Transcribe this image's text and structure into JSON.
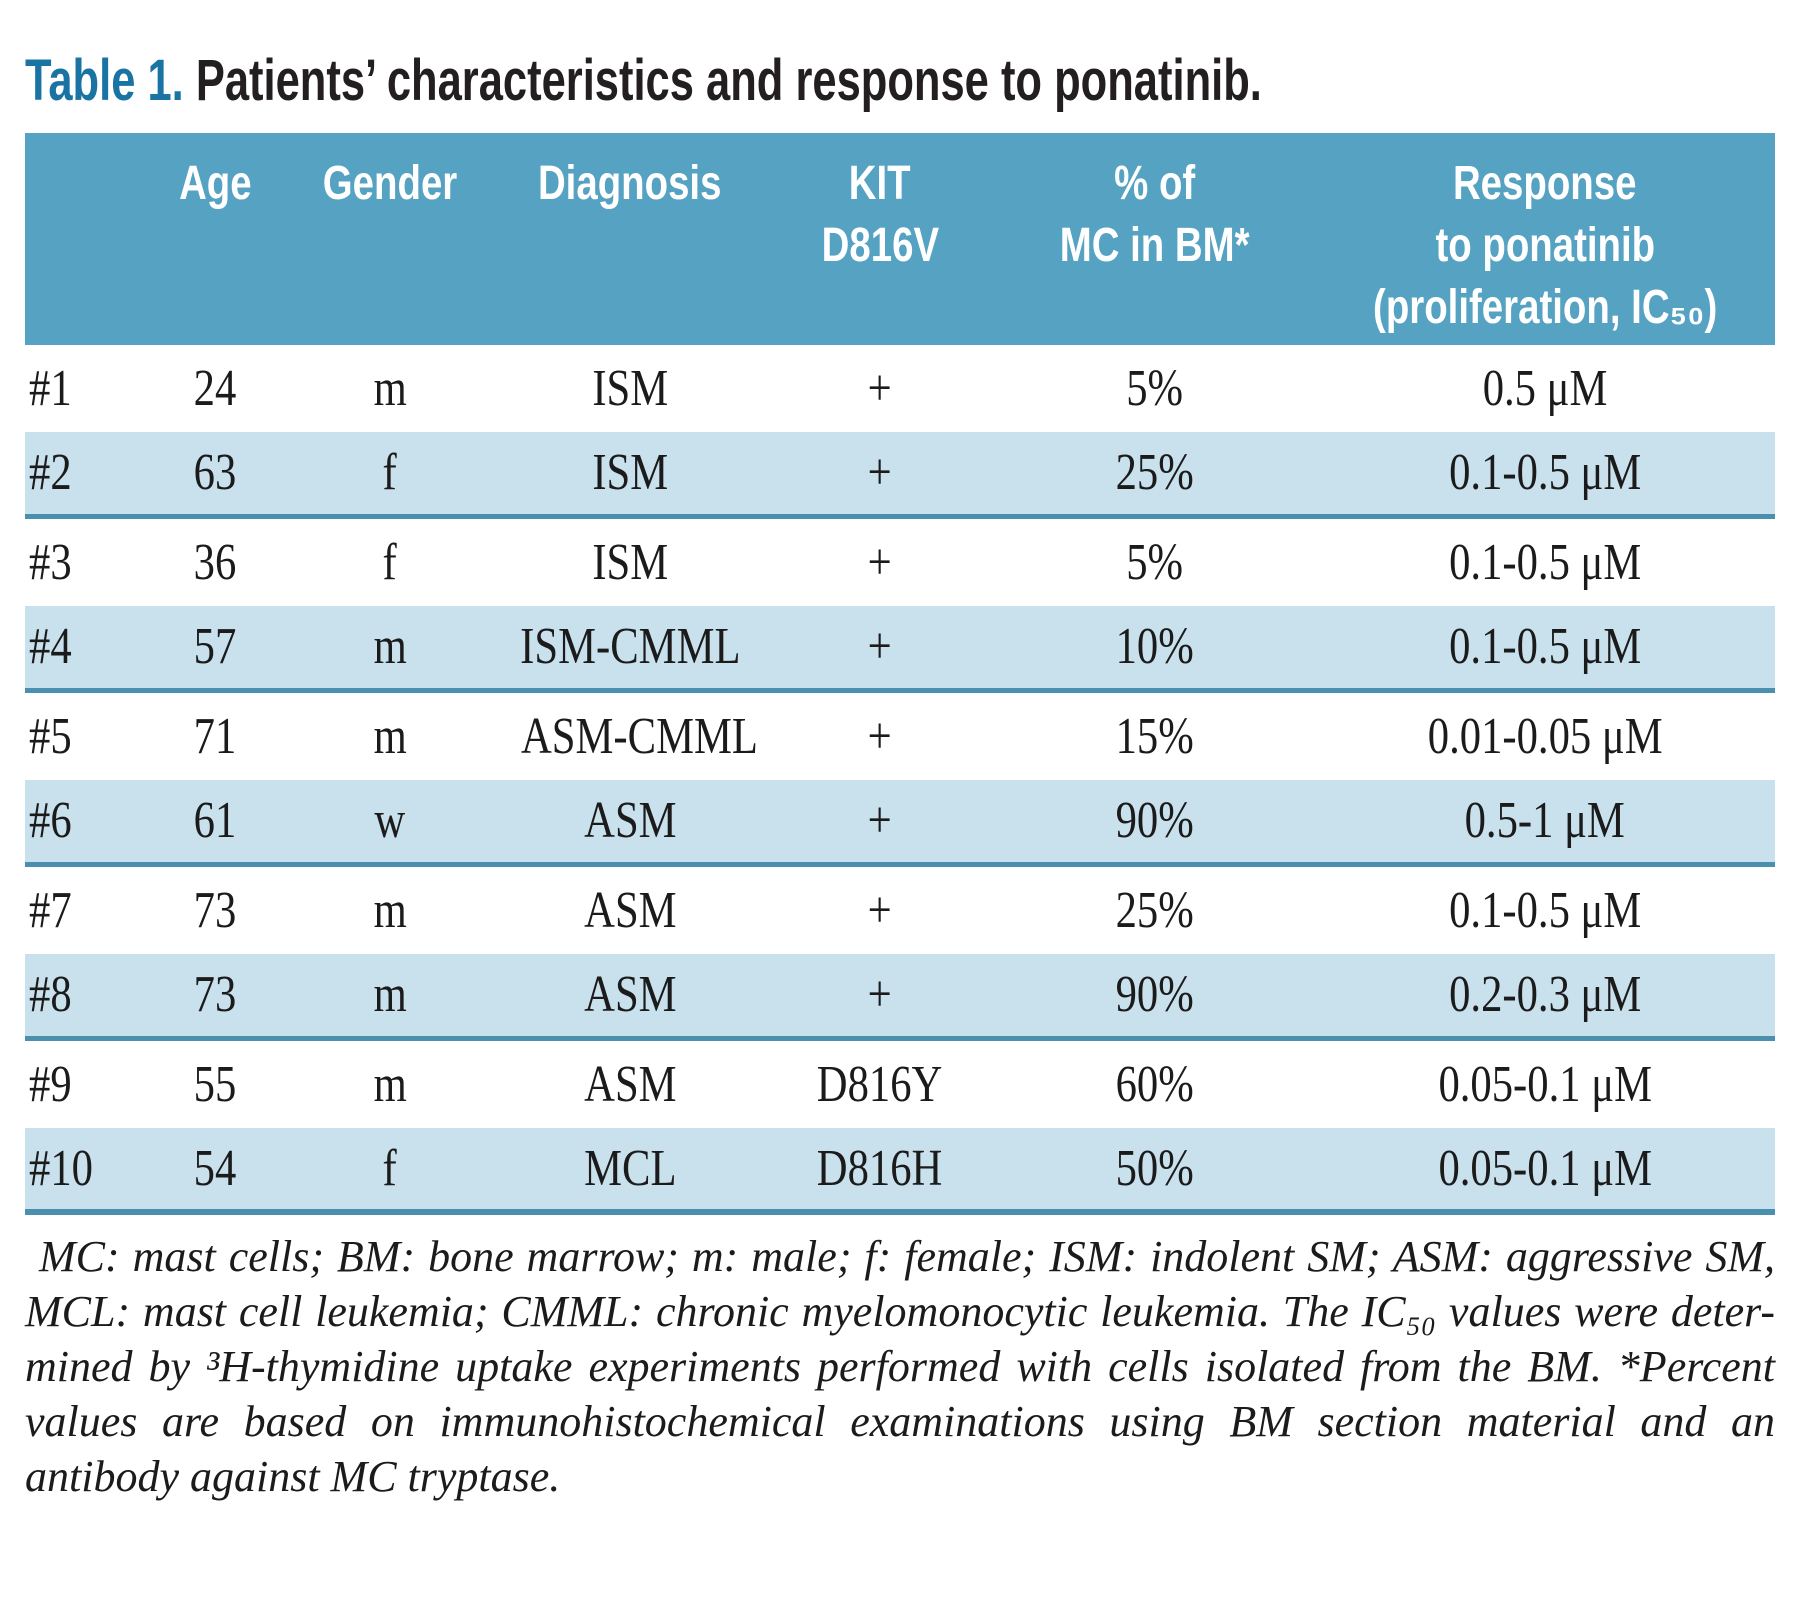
{
  "title": {
    "label": "Table 1.",
    "text": " Patients’ characteristics and response to ponatinib."
  },
  "table": {
    "header": [
      {
        "lines": []
      },
      {
        "lines": [
          "Age"
        ]
      },
      {
        "lines": [
          "Gender"
        ]
      },
      {
        "lines": [
          "Diagnosis"
        ]
      },
      {
        "lines": [
          "KIT",
          "D816V"
        ]
      },
      {
        "lines": [
          "% of",
          "MC in BM*"
        ]
      },
      {
        "lines": [
          "Response",
          "to ponatinib",
          "(proliferation, IC₅₀)"
        ]
      }
    ],
    "rows": [
      {
        "cells": [
          "#1",
          "24",
          "m",
          "ISM",
          "+",
          "5%",
          "0.5 μM"
        ]
      },
      {
        "cells": [
          "#2",
          "63",
          "f",
          "ISM",
          "+",
          "25%",
          "0.1-0.5 μM"
        ]
      },
      {
        "cells": [
          "#3",
          "36",
          "f",
          "ISM",
          "+",
          "5%",
          "0.1-0.5 μM"
        ]
      },
      {
        "cells": [
          "#4",
          "57",
          "m",
          "ISM-CMML",
          "+",
          "10%",
          "0.1-0.5 μM"
        ]
      },
      {
        "cells": [
          "#5",
          "71",
          "m",
          "ASM-CMML",
          "+",
          "15%",
          "0.01-0.05 μM"
        ]
      },
      {
        "cells": [
          "#6",
          "61",
          "w",
          "ASM",
          "+",
          "90%",
          "0.5-1 μM"
        ]
      },
      {
        "cells": [
          "#7",
          "73",
          "m",
          "ASM",
          "+",
          "25%",
          "0.1-0.5 μM"
        ]
      },
      {
        "cells": [
          "#8",
          "73",
          "m",
          "ASM",
          "+",
          "90%",
          "0.2-0.3 μM"
        ]
      },
      {
        "cells": [
          "#9",
          "55",
          "m",
          "ASM",
          "D816Y",
          "60%",
          "0.05-0.1 μM"
        ]
      },
      {
        "cells": [
          "#10",
          "54",
          "f",
          "MCL",
          "D816H",
          "50%",
          "0.05-0.1 μM"
        ]
      }
    ]
  },
  "footnote": {
    "lines": [
      "MC: mast cells; BM: bone marrow; m: male; f: female; ISM: indolent SM; ASM: aggressive SM,",
      "MCL: mast cell leukemia; CMML: chronic myelomonocytic leukemia. The IC₅₀ values were deter-",
      "mined by ³H-thymidine uptake experiments performed with cells isolated from the BM. *Percent",
      "values are based on immunohistochemical examinations using BM section material and an",
      "antibody against MC tryptase."
    ]
  },
  "colors": {
    "title_accent": "#1a74a3",
    "header_bg": "#55a2c2",
    "row_shaded_bg": "#c9e0ed",
    "rule_teal": "#4a90ae",
    "text": "#1b1b1b"
  }
}
